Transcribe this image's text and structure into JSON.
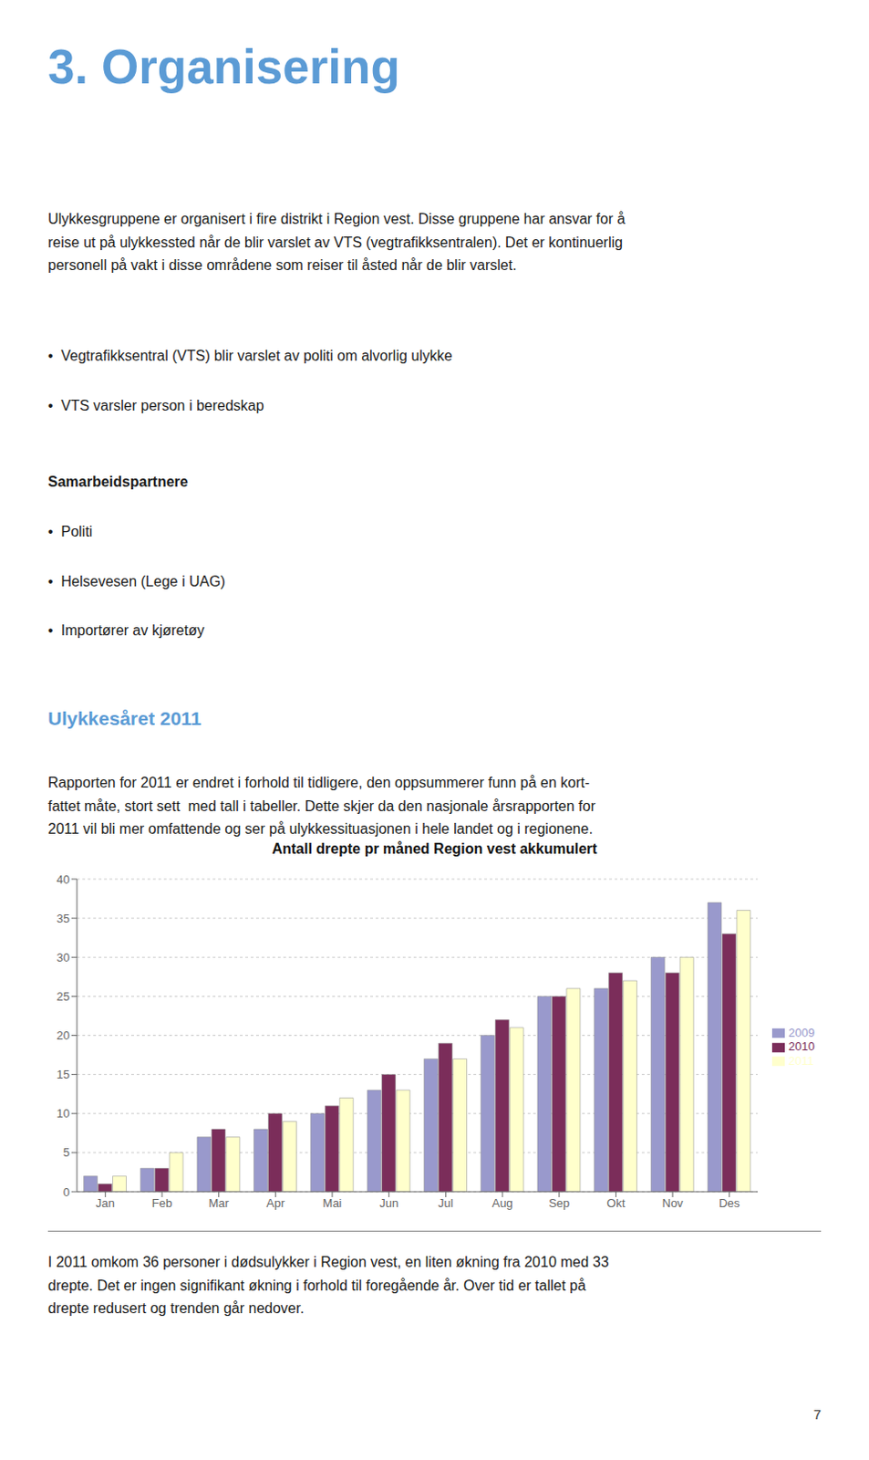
{
  "chart_data": {
    "type": "bar",
    "title": "Antall drepte pr måned Region vest akkumulert",
    "categories": [
      "Jan",
      "Feb",
      "Mar",
      "Apr",
      "Mai",
      "Jun",
      "Jul",
      "Aug",
      "Sep",
      "Okt",
      "Nov",
      "Des"
    ],
    "series": [
      {
        "name": "2009",
        "color": "#9999cc",
        "values": [
          2,
          3,
          7,
          8,
          10,
          13,
          17,
          20,
          25,
          26,
          30,
          37
        ]
      },
      {
        "name": "2010",
        "color": "#7b2d5a",
        "values": [
          1,
          3,
          8,
          10,
          11,
          15,
          19,
          22,
          25,
          28,
          28,
          33
        ]
      },
      {
        "name": "2011",
        "color": "#ffffcc",
        "values": [
          2,
          5,
          7,
          9,
          12,
          13,
          17,
          21,
          26,
          27,
          30,
          36
        ]
      }
    ],
    "ylim": [
      0,
      40
    ],
    "yticks": [
      0,
      5,
      10,
      15,
      20,
      25,
      30,
      35,
      40
    ],
    "grid": true,
    "legend": "right",
    "annotations": [
      "3. Organisering",
      "Ulykkesgruppene er organisert i fire distrikt i Region vest. Disse gruppene har ansvar for å\nreise ut på ulykkessted når de blir varslet av VTS (vegtrafikksentralen). Det er kontinuerlig\npersonell på vakt i disse områdene som reiser til åsted når de blir varslet.",
      "•  Vegtrafikksentral (VTS) blir varslet av politi om alvorlig ulykke",
      "•  VTS varsler person i beredskap",
      "Samarbeidspartnere",
      "•  Politi",
      "•  Helsevesen (Lege i UAG)",
      "•  Importører av kjøretøy",
      "Ulykkesåret 2011",
      "Rapporten for 2011 er endret i forhold til tidligere, den oppsummerer funn på en kort-\nfattet måte, stort sett  med tall i tabeller. Dette skjer da den nasjonale årsrapporten for\n2011 vil bli mer omfattende og ser på ulykkessituasjonen i hele landet og i regionene.",
      "I 2011 omkom 36 personer i dødsulykker i Region vest, en liten økning fra 2010 med 33\ndrepte. Det er ingen signifikant økning i forhold til foregående år. Over tid er tallet på\ndrepte redusert og trenden går nedover.",
      "7"
    ]
  }
}
